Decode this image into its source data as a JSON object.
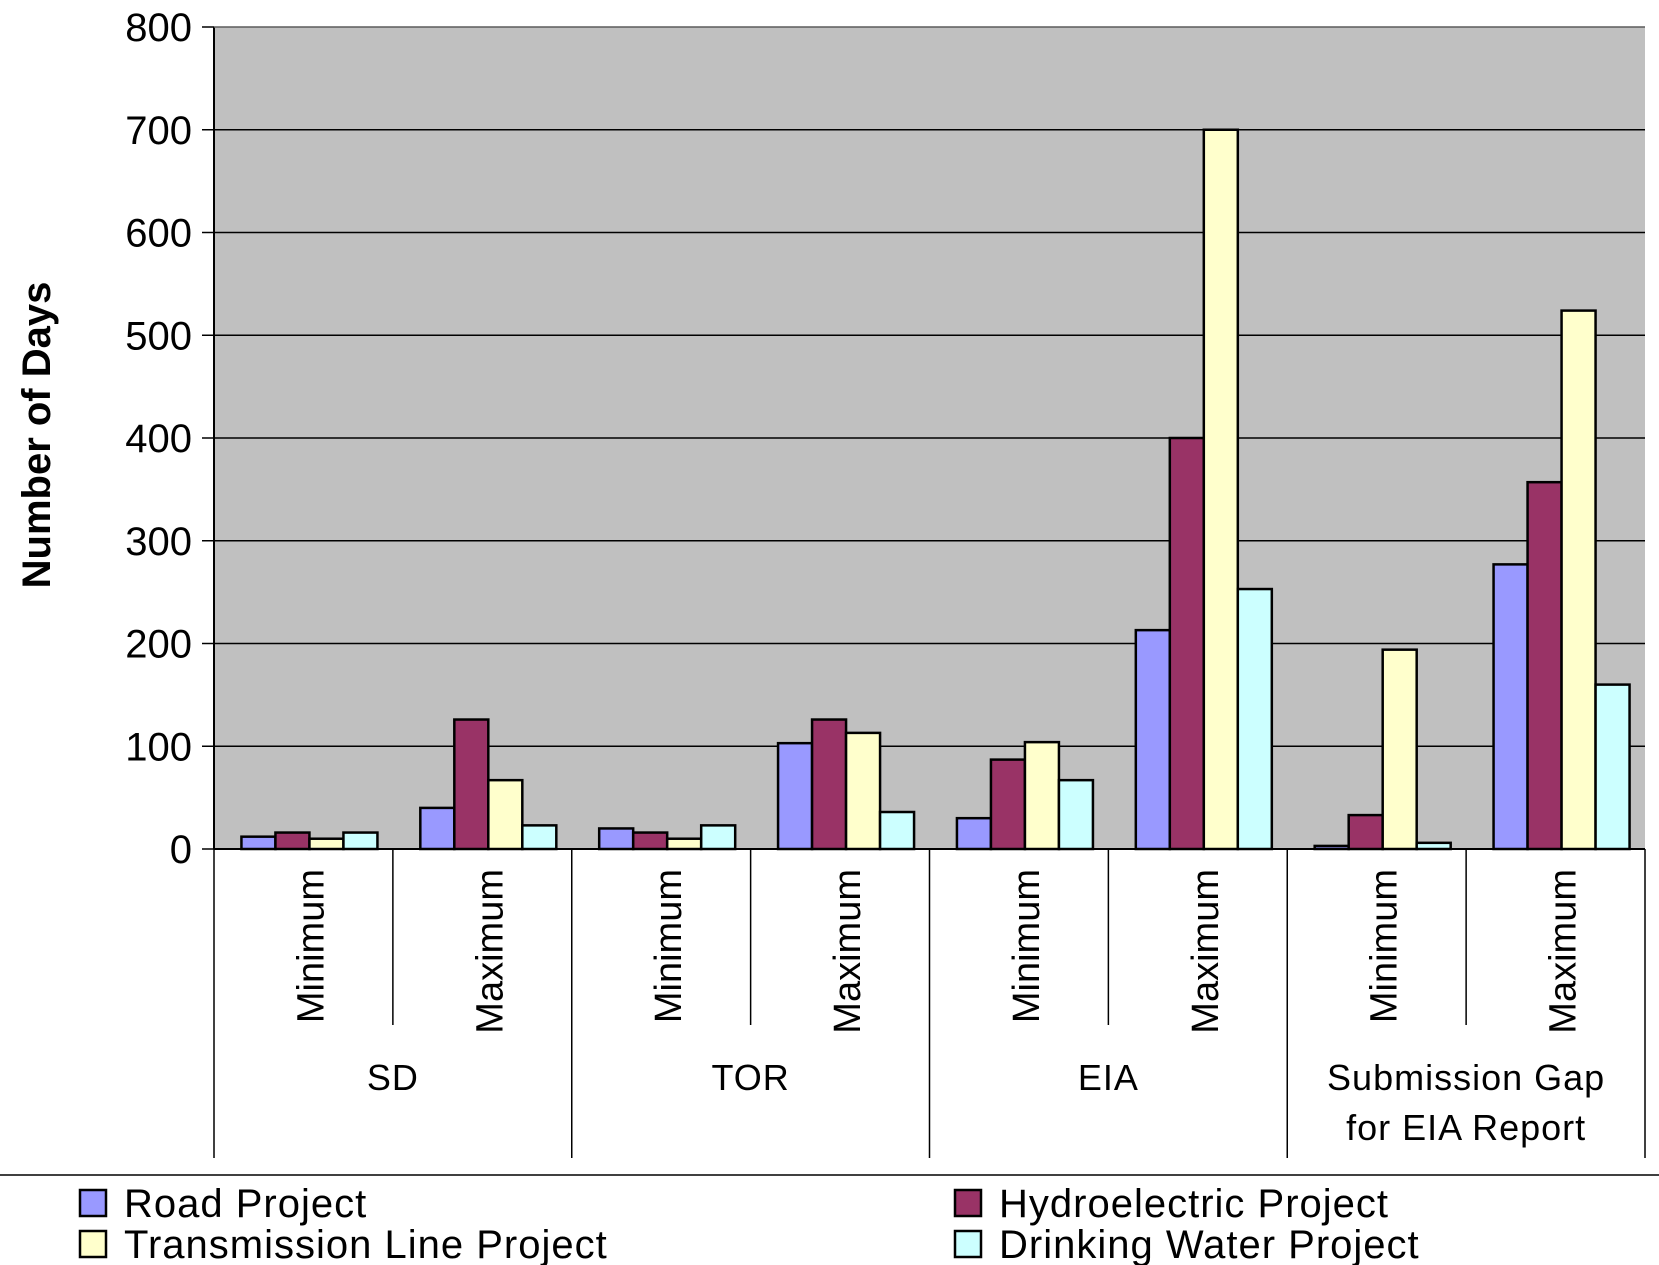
{
  "chart_data": {
    "type": "bar",
    "ylabel": "Number of Days",
    "ylim": [
      0,
      800
    ],
    "yticks": [
      "0",
      "100",
      "200",
      "300",
      "400",
      "500",
      "600",
      "700",
      "800"
    ],
    "groups": [
      {
        "label": "SD",
        "subcategories": [
          "Minimum",
          "Maximum"
        ]
      },
      {
        "label": "TOR",
        "subcategories": [
          "Minimum",
          "Maximum"
        ]
      },
      {
        "label": "EIA",
        "subcategories": [
          "Minimum",
          "Maximum"
        ]
      },
      {
        "label": "Submission Gap for EIA Report",
        "label_lines": [
          "Submission Gap",
          "for EIA Report"
        ],
        "subcategories": [
          "Minimum",
          "Maximum"
        ]
      }
    ],
    "categories": [
      "SD Minimum",
      "SD Maximum",
      "TOR Minimum",
      "TOR Maximum",
      "EIA Minimum",
      "EIA Maximum",
      "Submission Gap for EIA Report Minimum",
      "Submission Gap for EIA Report Maximum"
    ],
    "series": [
      {
        "name": "Road Project",
        "color": "#9999FF",
        "values": [
          12,
          40,
          20,
          103,
          30,
          213,
          3,
          277
        ]
      },
      {
        "name": "Hydroelectric Project",
        "color": "#993366",
        "values": [
          16,
          126,
          16,
          126,
          87,
          400,
          33,
          357
        ]
      },
      {
        "name": "Transmission Line Project",
        "color": "#FFFFCC",
        "values": [
          10,
          67,
          10,
          113,
          104,
          700,
          194,
          524
        ]
      },
      {
        "name": "Drinking Water Project",
        "color": "#CCFFFF",
        "values": [
          16,
          23,
          23,
          36,
          67,
          253,
          6,
          160
        ]
      }
    ],
    "plot_background": "#C0C0C0",
    "grid": true,
    "legend_position": "bottom"
  }
}
